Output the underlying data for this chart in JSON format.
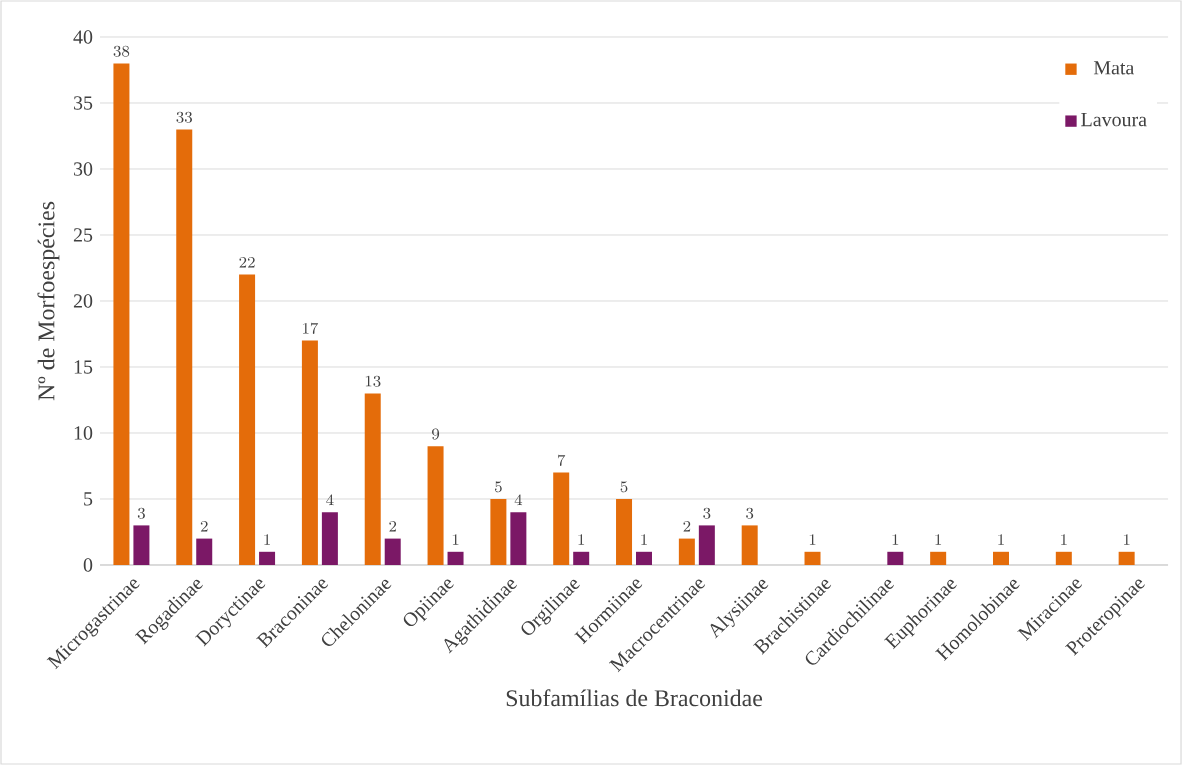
{
  "chart_data": {
    "type": "bar",
    "xlabel": "Subfamílias de Braconidae",
    "ylabel": "Nº de Morfoespécies",
    "categories": [
      "Microgastrinae",
      "Rogadinae",
      "Doryctinae",
      "Braconinae",
      "Cheloninae",
      "Opiinae",
      "Agathidinae",
      "Orgilinae",
      "Hormiinae",
      "Macrocentrinae",
      "Alysiinae",
      "Brachistinae",
      "Cardiochilinae",
      "Euphorinae",
      "Homolobinae",
      "Miracinae",
      "Proteropinae"
    ],
    "series": [
      {
        "name": "Mata",
        "color": "#e46c0a",
        "values": [
          38,
          33,
          22,
          17,
          13,
          9,
          5,
          7,
          5,
          2,
          3,
          1,
          null,
          1,
          1,
          1,
          1
        ]
      },
      {
        "name": "Lavoura",
        "color": "#7b1866",
        "values": [
          3,
          2,
          1,
          4,
          2,
          1,
          4,
          1,
          1,
          3,
          null,
          null,
          1,
          null,
          null,
          null,
          null
        ]
      }
    ],
    "ylim": [
      0,
      40
    ],
    "yticks": [
      0,
      5,
      10,
      15,
      20,
      25,
      30,
      35,
      40
    ],
    "grid": "y",
    "legend": "top right",
    "data_labels": true
  }
}
